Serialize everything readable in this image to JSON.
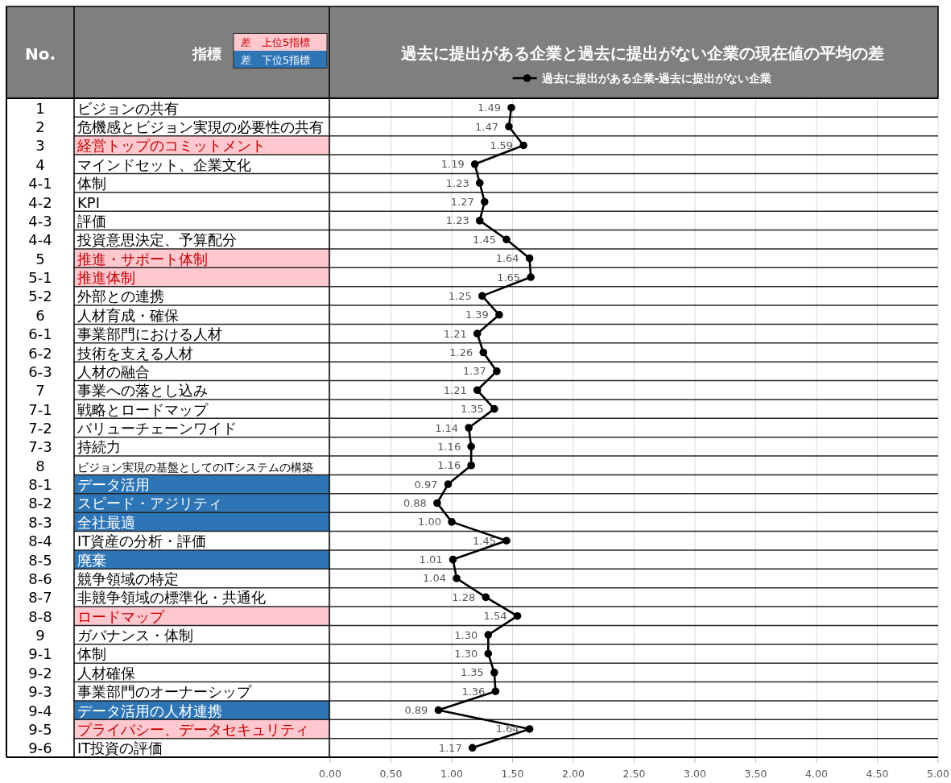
{
  "chart_data": {
    "type": "line",
    "orientation": "horizontal",
    "title": "過去に提出がある企業と過去に提出がない企業の現在値の平均の差",
    "ylabel": "指標",
    "y2label": "No.",
    "annotations": [
      "差　上位5指標",
      "差　下位5指標"
    ],
    "categories": [
      "ビジョンの共有",
      "危機感とビジョン実現の必要性の共有",
      "経営トップのコミットメント",
      "マインドセット、企業文化",
      "体制",
      "KPI",
      "評価",
      "投資意思決定、予算配分",
      "推進・サポート体制",
      "推進体制",
      "外部との連携",
      "人材育成・確保",
      "事業部門における人材",
      "技術を支える人材",
      "人材の融合",
      "事業への落とし込み",
      "戦略とロードマップ",
      "バリューチェーンワイド",
      "持続力",
      "ビジョン実現の基盤としてのITシステムの構築",
      "データ活用",
      "スピード・アジリティ",
      "全社最適",
      "IT資産の分析・評価",
      "廃棄",
      "競争領域の特定",
      "非競争領域の標準化・共通化",
      "ロードマップ",
      "ガバナンス・体制",
      "体制",
      "人材確保",
      "事業部門のオーナーシップ",
      "データ活用の人材連携",
      "プライバシー、データセキュリティ",
      "IT投資の評価"
    ],
    "y2_categories": [
      "1",
      "2",
      "3",
      "4",
      "4-1",
      "4-2",
      "4-3",
      "4-4",
      "5",
      "5-1",
      "5-2",
      "6",
      "6-1",
      "6-2",
      "6-3",
      "7",
      "7-1",
      "7-2",
      "7-3",
      "8",
      "8-1",
      "8-2",
      "8-3",
      "8-4",
      "8-5",
      "8-6",
      "8-7",
      "8-8",
      "9",
      "9-1",
      "9-2",
      "9-3",
      "9-4",
      "9-5",
      "9-6"
    ],
    "series": [
      {
        "name": "過去に提出がある企業-過去に提出がない企業",
        "color": "#000000",
        "values": [
          1.49,
          1.47,
          1.59,
          1.19,
          1.23,
          1.27,
          1.23,
          1.45,
          1.64,
          1.65,
          1.25,
          1.39,
          1.21,
          1.26,
          1.37,
          1.21,
          1.35,
          1.14,
          1.16,
          1.16,
          0.97,
          0.88,
          1.0,
          1.45,
          1.01,
          1.04,
          1.28,
          1.54,
          1.3,
          1.3,
          1.35,
          1.36,
          0.89,
          1.64,
          1.17
        ],
        "value_labels": [
          "1.49",
          "1.47",
          "1.59",
          "1.19",
          "1.23",
          "1.27",
          "1.23",
          "1.45",
          "1.64",
          "1.65",
          "1.25",
          "1.39",
          "1.21",
          "1.26",
          "1.37",
          "1.21",
          "1.35",
          "1.14",
          "1.16",
          "1.16",
          "0.97",
          "0.88",
          "1.00",
          "1.45",
          "1.01",
          "1.04",
          "1.28",
          "1.54",
          "1.30",
          "1.30",
          "1.35",
          "1.36",
          "0.89",
          "1.64",
          "1.17"
        ]
      }
    ],
    "xlim": [
      0,
      5
    ],
    "xticks": [
      {
        "value": 0,
        "label": "0.00"
      },
      {
        "value": 0.5,
        "label": "0.50"
      },
      {
        "value": 1,
        "label": "1.00"
      },
      {
        "value": 1.5,
        "label": "1.50"
      },
      {
        "value": 2,
        "label": "2.00"
      },
      {
        "value": 2.5,
        "label": "2.50"
      },
      {
        "value": 3,
        "label": "3.00"
      },
      {
        "value": 3.5,
        "label": "3.50"
      },
      {
        "value": 4,
        "label": "4.00"
      },
      {
        "value": 4.5,
        "label": "4.50"
      },
      {
        "value": 5,
        "label": "5.00"
      }
    ],
    "grid": "x",
    "legend": "top",
    "marker": "circle",
    "line_style": "solid"
  }
}
